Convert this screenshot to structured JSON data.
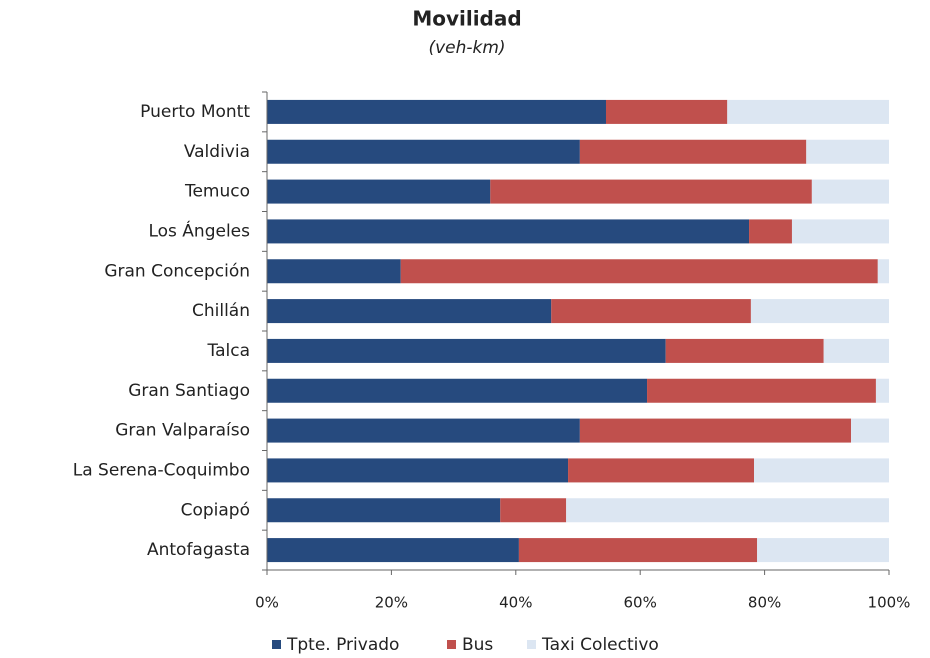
{
  "chart_data": {
    "type": "stacked_barh",
    "title": "Movilidad",
    "subtitle": "(veh-km)",
    "categories": [
      "Puerto Montt",
      "Valdivia",
      "Temuco",
      "Los Ángeles",
      "Gran Concepción",
      "Chillán",
      "Talca",
      "Gran Santiago",
      "Gran Valparaíso",
      "La Serena-Coquimbo",
      "Copiapó",
      "Antofagasta"
    ],
    "series": [
      {
        "name": "Tpte. Privado",
        "color": "#264a7e",
        "values": [
          54.5,
          50.3,
          35.9,
          77.5,
          21.5,
          45.7,
          64.1,
          61.1,
          50.3,
          48.4,
          37.5,
          40.5
        ]
      },
      {
        "name": "Bus",
        "color": "#c0504d",
        "values": [
          19.5,
          36.4,
          51.7,
          6.9,
          76.7,
          32.1,
          25.4,
          36.8,
          43.6,
          29.9,
          10.6,
          38.3
        ]
      },
      {
        "name": "Taxi Colectivo",
        "color": "#dce6f2",
        "values": [
          26.0,
          13.3,
          12.4,
          15.6,
          1.8,
          22.2,
          10.5,
          2.1,
          6.1,
          21.7,
          51.9,
          21.2
        ]
      }
    ],
    "xlim": [
      0,
      100
    ],
    "xticks": [
      {
        "value": 0,
        "label": "0%"
      },
      {
        "value": 20,
        "label": "20%"
      },
      {
        "value": 40,
        "label": "40%"
      },
      {
        "value": 60,
        "label": "60%"
      },
      {
        "value": 80,
        "label": "80%"
      },
      {
        "value": 100,
        "label": "100%"
      }
    ]
  }
}
